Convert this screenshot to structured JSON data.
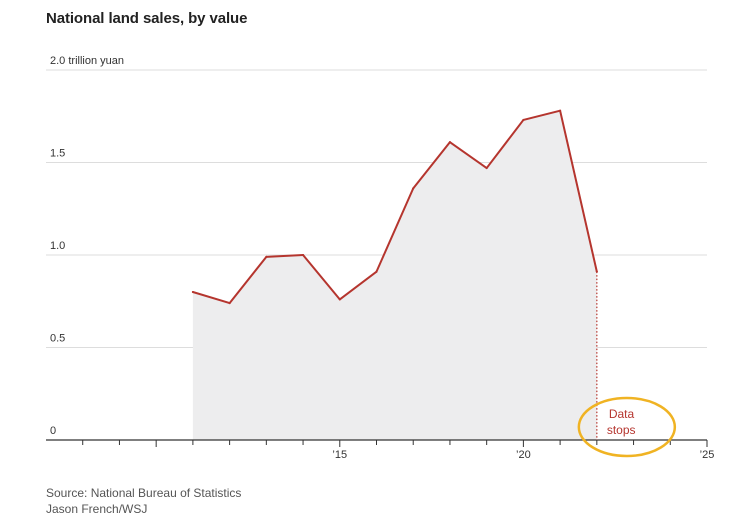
{
  "title": "National land sales, by value",
  "source": "Source: National Bureau of Statistics",
  "credit": "Jason French/WSJ",
  "colors": {
    "line": "#b5352e",
    "area": "#ededee",
    "grid": "#dddddd",
    "axis": "#333333",
    "annotation_text": "#b5352e",
    "highlight_ring": "#f0b323"
  },
  "chart_data": {
    "type": "area",
    "title": "National land sales, by value",
    "ylabel": "",
    "unit_label": "2.0 trillion yuan",
    "x": [
      2011,
      2012,
      2013,
      2014,
      2015,
      2016,
      2017,
      2018,
      2019,
      2020,
      2021,
      2022
    ],
    "series": [
      {
        "values": [
          0.8,
          0.74,
          0.99,
          1.0,
          0.76,
          0.91,
          1.36,
          1.61,
          1.47,
          1.73,
          1.78,
          0.91
        ]
      }
    ],
    "xlim": [
      2007,
      2025
    ],
    "ylim": [
      0,
      2.0
    ],
    "yticks": [
      0,
      0.5,
      1.0,
      1.5,
      2.0
    ],
    "ytick_labels": [
      "0",
      "0.5",
      "1.0",
      "1.5",
      "2.0 trillion yuan"
    ],
    "xtick_labels": [
      {
        "value": 2015,
        "label": "’15"
      },
      {
        "value": 2020,
        "label": "’20"
      },
      {
        "value": 2025,
        "label": "’25"
      }
    ],
    "annotation": {
      "lines": [
        "Data",
        "stops"
      ],
      "x": 2022
    },
    "grid": true,
    "legend": "none"
  }
}
